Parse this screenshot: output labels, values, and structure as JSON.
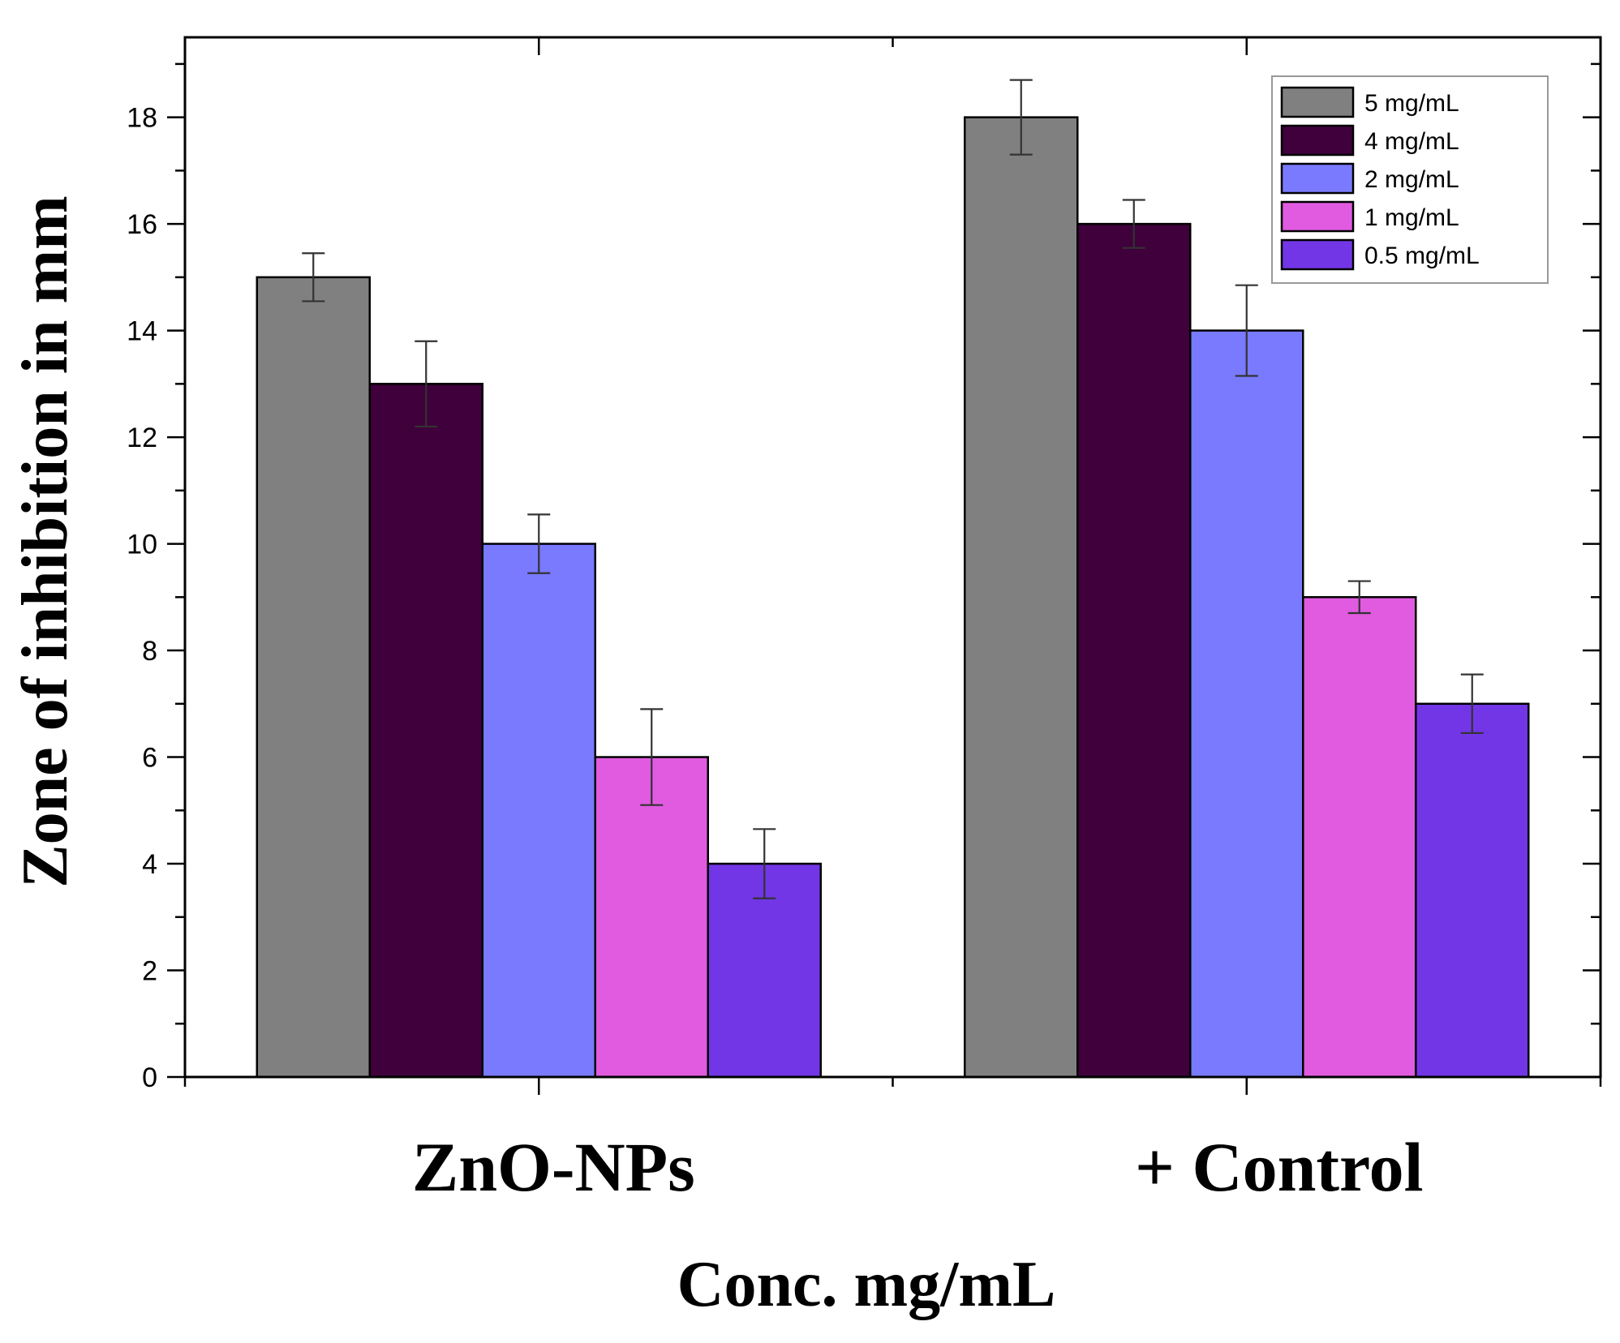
{
  "chart_data": {
    "type": "bar",
    "categories": [
      "ZnO-NPs",
      "+ Control"
    ],
    "xlabel": "Conc. mg/mL",
    "ylabel": "Zone of inhibition in mm",
    "ylim": [
      0,
      19.5
    ],
    "yticks": [
      0,
      2,
      4,
      6,
      8,
      10,
      12,
      14,
      16,
      18
    ],
    "grid": false,
    "legend_position": "top-right",
    "series": [
      {
        "name": "5 mg/mL",
        "color": "#808080",
        "values": [
          15,
          18
        ],
        "errors": [
          0.45,
          0.7
        ]
      },
      {
        "name": "4 mg/mL",
        "color": "#3f003c",
        "values": [
          13,
          16
        ],
        "errors": [
          0.8,
          0.45
        ]
      },
      {
        "name": "2 mg/mL",
        "color": "#7a7aff",
        "values": [
          10,
          14
        ],
        "errors": [
          0.55,
          0.85
        ]
      },
      {
        "name": "1 mg/mL",
        "color": "#e05be0",
        "values": [
          6,
          9
        ],
        "errors": [
          0.9,
          0.3
        ]
      },
      {
        "name": "0.5 mg/mL",
        "color": "#7236e6",
        "values": [
          4,
          7
        ],
        "errors": [
          0.65,
          0.55
        ]
      }
    ]
  }
}
